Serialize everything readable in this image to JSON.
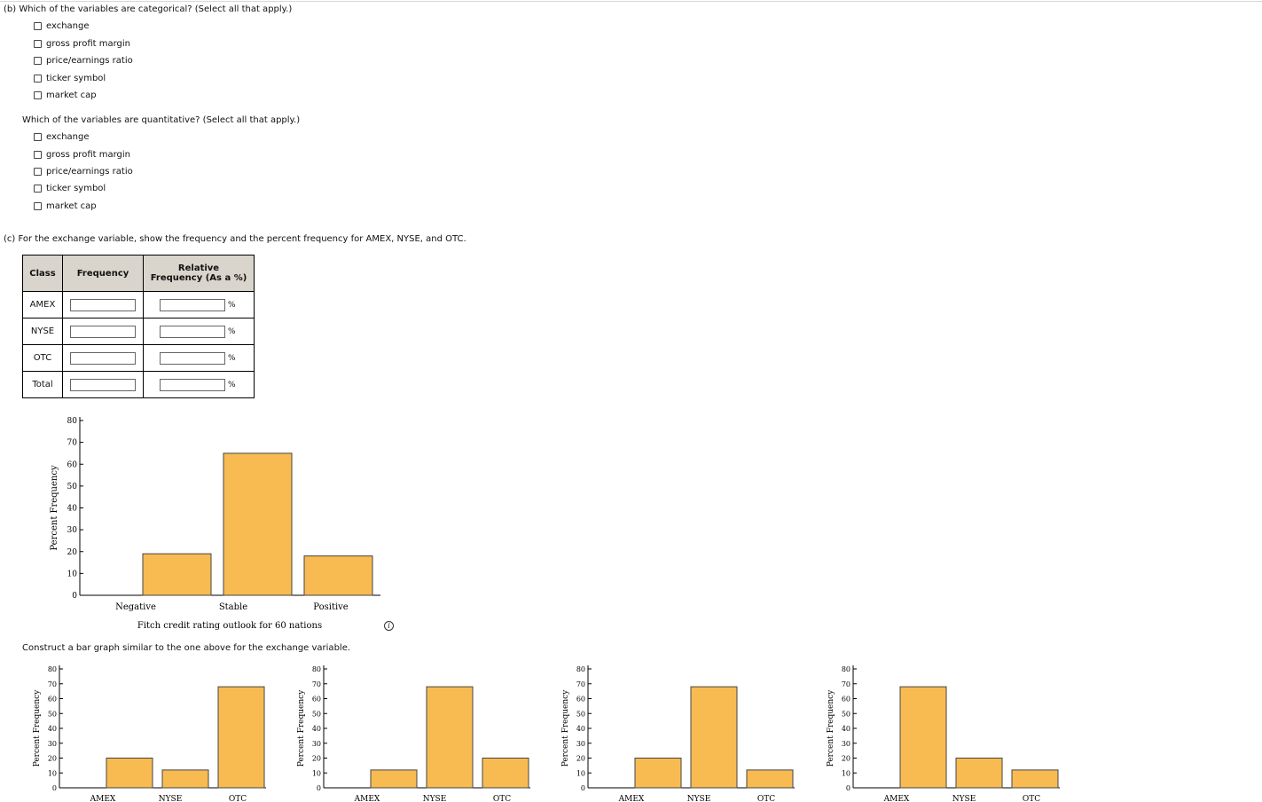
{
  "part_b": {
    "q1": "(b)   Which of the variables are categorical? (Select all that apply.)",
    "q1_options": [
      "exchange",
      "gross profit margin",
      "price/earnings ratio",
      "ticker symbol",
      "market cap"
    ],
    "q2": "Which of the variables are quantitative? (Select all that apply.)",
    "q2_options": [
      "exchange",
      "gross profit margin",
      "price/earnings ratio",
      "ticker symbol",
      "market cap"
    ]
  },
  "part_c": {
    "prompt": "(c)   For the exchange variable, show the frequency and the percent frequency for AMEX, NYSE, and OTC.",
    "table": {
      "headers": [
        "Class",
        "Frequency",
        "Relative",
        "Frequency (As a %)"
      ],
      "rows": [
        "AMEX",
        "NYSE",
        "OTC",
        "Total"
      ],
      "percent_symbol": "%"
    },
    "construct_prompt": "Construct a bar graph similar to the one above for the exchange variable."
  },
  "chart_data": [
    {
      "type": "bar",
      "categories": [
        "Negative",
        "Stable",
        "Positive"
      ],
      "values": [
        19,
        65,
        18
      ],
      "xlabel": "Fitch credit rating outlook for 60 nations",
      "ylabel": "Percent Frequency",
      "ylim": [
        0,
        80
      ],
      "yticks": [
        "0",
        "10",
        "20",
        "30",
        "40",
        "50",
        "60",
        "70",
        "80"
      ],
      "color": "#f8bb52"
    },
    {
      "type": "bar",
      "categories": [
        "AMEX",
        "NYSE",
        "OTC"
      ],
      "values": [
        20,
        12,
        68
      ],
      "ylabel": "Percent Frequency",
      "ylim": [
        0,
        80
      ],
      "yticks": [
        "0",
        "10",
        "20",
        "30",
        "40",
        "50",
        "60",
        "70",
        "80"
      ],
      "color": "#f8bb52"
    },
    {
      "type": "bar",
      "categories": [
        "AMEX",
        "NYSE",
        "OTC"
      ],
      "values": [
        12,
        68,
        20
      ],
      "ylabel": "Percent Frequency",
      "ylim": [
        0,
        80
      ],
      "yticks": [
        "0",
        "10",
        "20",
        "30",
        "40",
        "50",
        "60",
        "70",
        "80"
      ],
      "color": "#f8bb52"
    },
    {
      "type": "bar",
      "categories": [
        "AMEX",
        "NYSE",
        "OTC"
      ],
      "values": [
        20,
        68,
        12
      ],
      "ylabel": "Percent Frequency",
      "ylim": [
        0,
        80
      ],
      "yticks": [
        "0",
        "10",
        "20",
        "30",
        "40",
        "50",
        "60",
        "70",
        "80"
      ],
      "color": "#f8bb52"
    },
    {
      "type": "bar",
      "categories": [
        "AMEX",
        "NYSE",
        "OTC"
      ],
      "values": [
        68,
        20,
        12
      ],
      "ylabel": "Percent Frequency",
      "ylim": [
        0,
        80
      ],
      "yticks": [
        "0",
        "10",
        "20",
        "30",
        "40",
        "50",
        "60",
        "70",
        "80"
      ],
      "color": "#f8bb52"
    }
  ]
}
